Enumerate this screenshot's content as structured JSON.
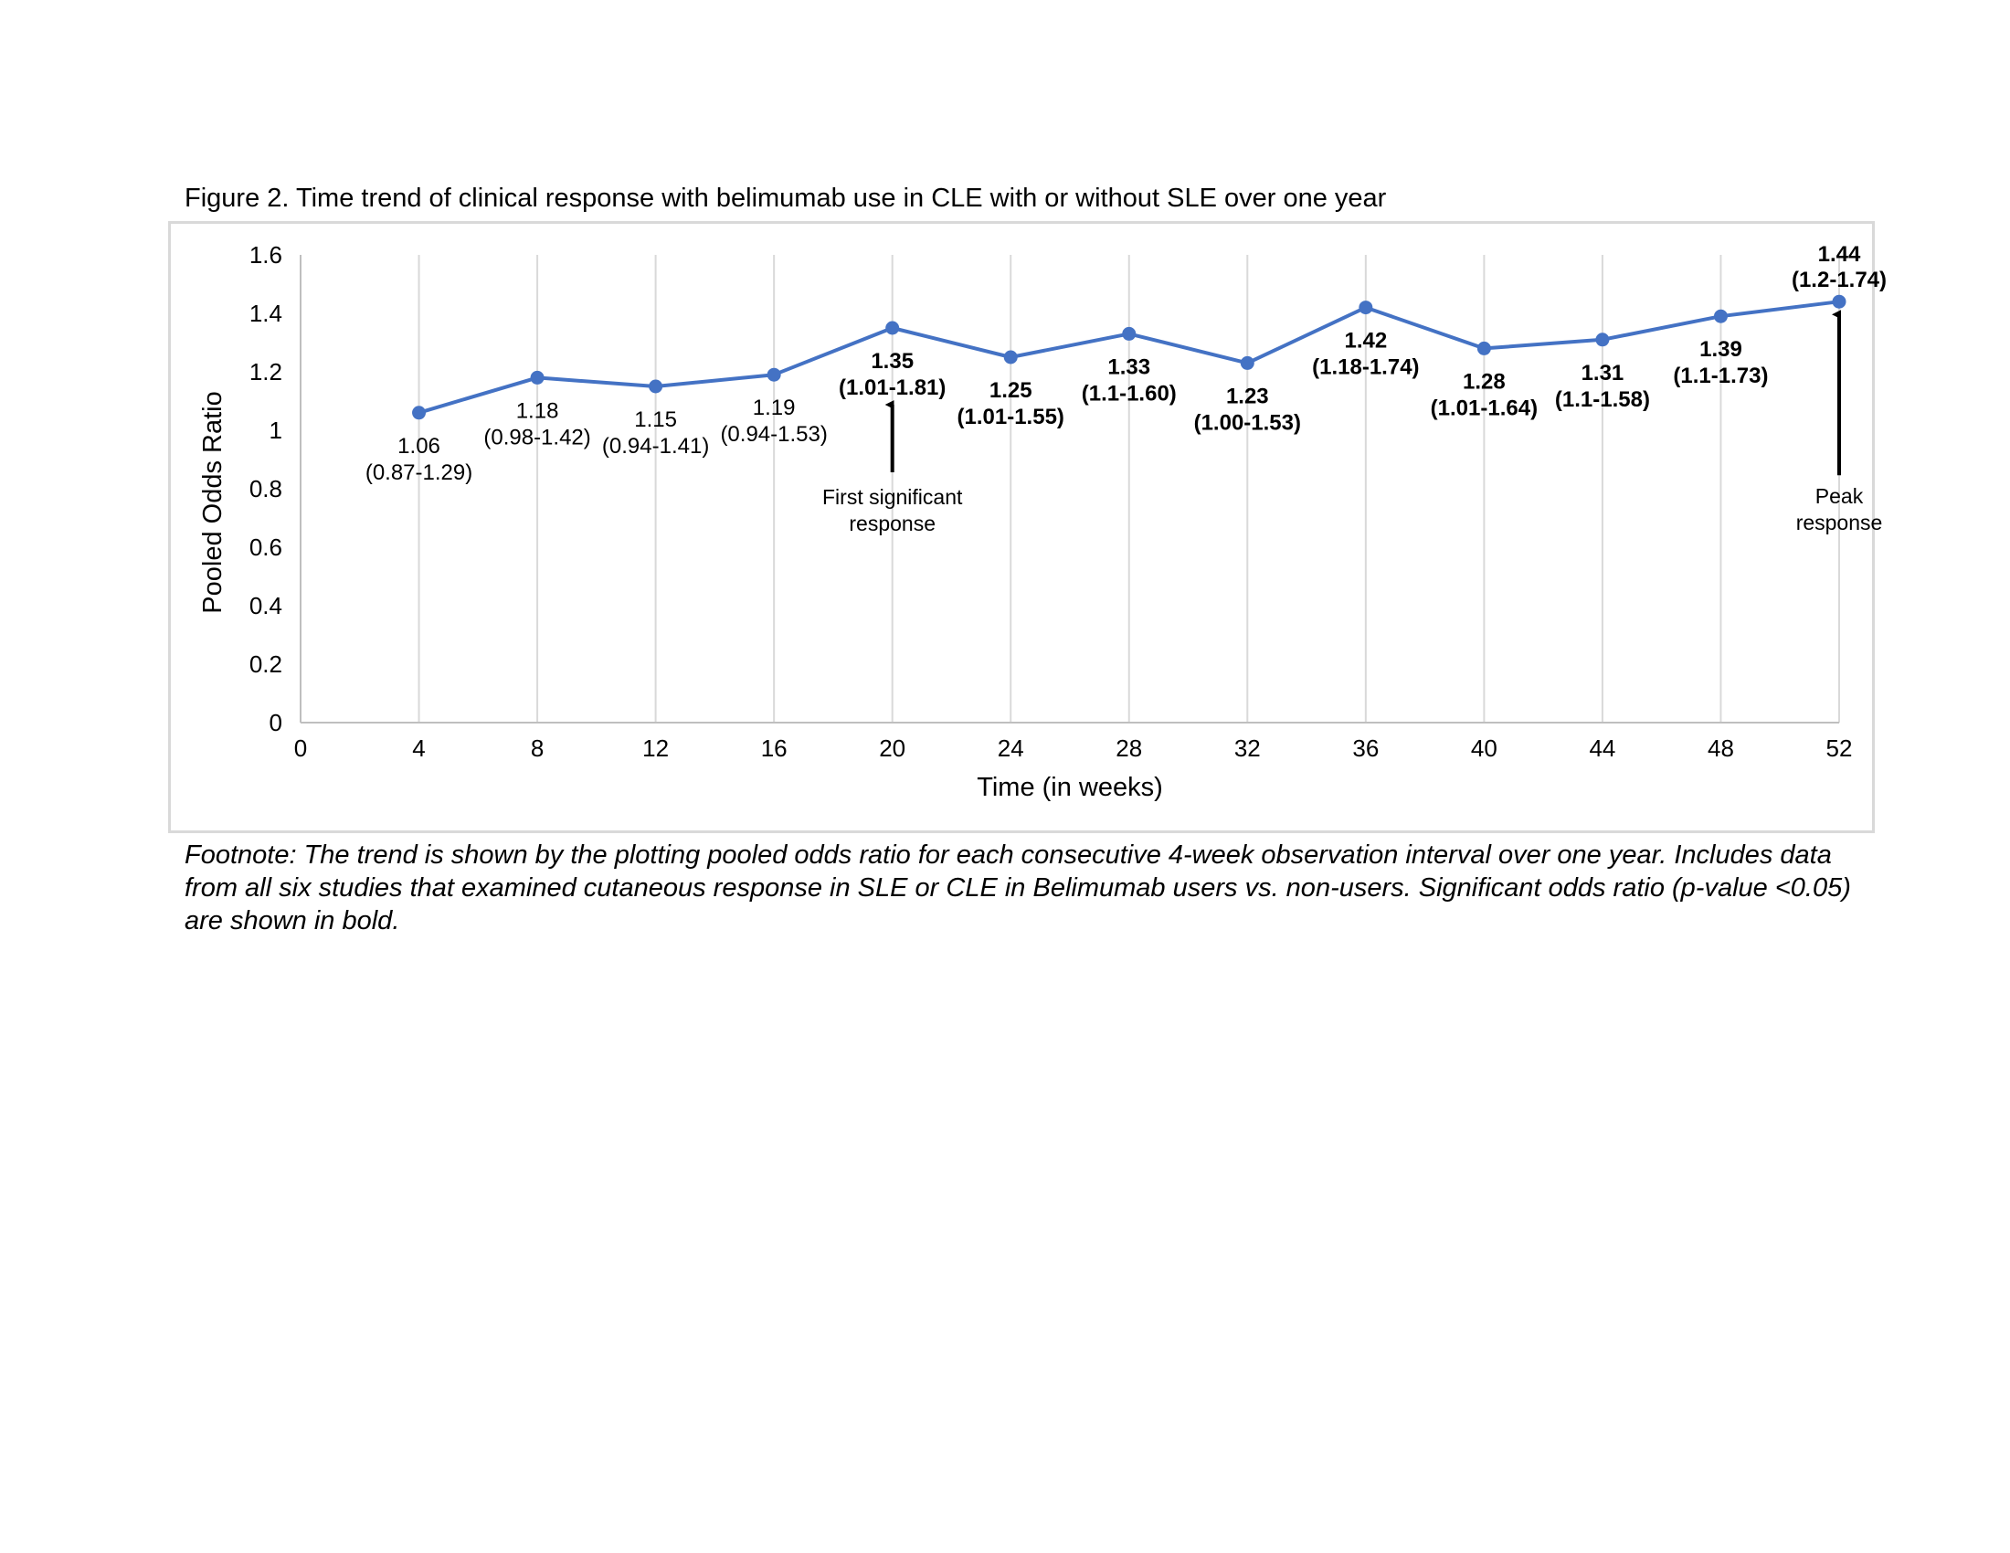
{
  "figure_title": "Figure 2. Time trend of clinical response with belimumab use in CLE with or without SLE over one year",
  "footnote": "Footnote: The trend is shown by the plotting pooled odds ratio for each consecutive 4-week observation interval over one year. Includes data from all six studies that examined cutaneous response in SLE or CLE in Belimumab users vs. non-users. Significant odds ratio (p-value <0.05) are shown in bold.",
  "colors": {
    "series": "#4472c4",
    "grid": "#d9d9d9",
    "axis": "#bfbfbf",
    "arrow": "#000000"
  },
  "chart_data": {
    "type": "line",
    "xlabel": "Time (in weeks)",
    "ylabel": "Pooled Odds Ratio",
    "xlim": [
      0,
      52
    ],
    "ylim": [
      0,
      1.6
    ],
    "x_ticks": [
      0,
      4,
      8,
      12,
      16,
      20,
      24,
      28,
      32,
      36,
      40,
      44,
      48,
      52
    ],
    "y_ticks": [
      0,
      0.2,
      0.4,
      0.6,
      0.8,
      1,
      1.2,
      1.4,
      1.6
    ],
    "y_tick_labels": [
      "0",
      "0.2",
      "0.4",
      "0.6",
      "0.8",
      "1",
      "1.2",
      "1.4",
      "1.6"
    ],
    "grid": "vertical",
    "x": [
      4,
      8,
      12,
      16,
      20,
      24,
      28,
      32,
      36,
      40,
      44,
      48,
      52
    ],
    "y": [
      1.06,
      1.18,
      1.15,
      1.19,
      1.35,
      1.25,
      1.33,
      1.23,
      1.42,
      1.28,
      1.31,
      1.39,
      1.44
    ],
    "labels": [
      {
        "value": "1.06",
        "ci": "(0.87-1.29)",
        "significant": false,
        "position": "below"
      },
      {
        "value": "1.18",
        "ci": "(0.98-1.42)",
        "significant": false,
        "position": "below"
      },
      {
        "value": "1.15",
        "ci": "(0.94-1.41)",
        "significant": false,
        "position": "below"
      },
      {
        "value": "1.19",
        "ci": "(0.94-1.53)",
        "significant": false,
        "position": "below"
      },
      {
        "value": "1.35",
        "ci": "(1.01-1.81)",
        "significant": true,
        "position": "below"
      },
      {
        "value": "1.25",
        "ci": "(1.01-1.55)",
        "significant": true,
        "position": "below"
      },
      {
        "value": "1.33",
        "ci": "(1.1-1.60)",
        "significant": true,
        "position": "below"
      },
      {
        "value": "1.23",
        "ci": "(1.00-1.53)",
        "significant": true,
        "position": "below"
      },
      {
        "value": "1.42",
        "ci": "(1.18-1.74)",
        "significant": true,
        "position": "below"
      },
      {
        "value": "1.28",
        "ci": "(1.01-1.64)",
        "significant": true,
        "position": "below"
      },
      {
        "value": "1.31",
        "ci": "(1.1-1.58)",
        "significant": true,
        "position": "below"
      },
      {
        "value": "1.39",
        "ci": "(1.1-1.73)",
        "significant": true,
        "position": "below"
      },
      {
        "value": "1.44",
        "ci": "(1.2-1.74)",
        "significant": true,
        "position": "above"
      }
    ],
    "annotations": [
      {
        "x": 20,
        "lines": [
          "First significant",
          "response"
        ]
      },
      {
        "x": 52,
        "lines": [
          "Peak",
          "response"
        ]
      }
    ]
  }
}
